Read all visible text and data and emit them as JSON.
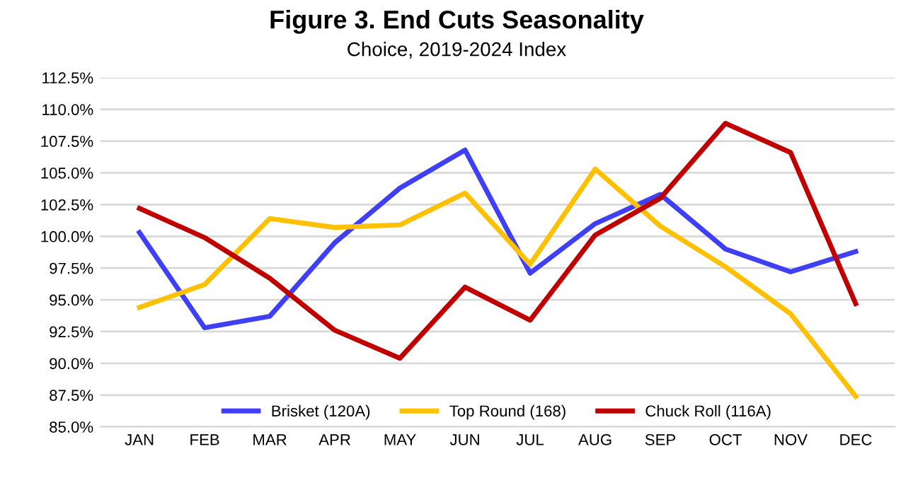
{
  "chart_data": {
    "type": "line",
    "title": "Figure 3. End Cuts Seasonality",
    "subtitle": "Choice, 2019-2024 Index",
    "categories": [
      "JAN",
      "FEB",
      "MAR",
      "APR",
      "MAY",
      "JUN",
      "JUL",
      "AUG",
      "SEP",
      "OCT",
      "NOV",
      "DEC"
    ],
    "series": [
      {
        "name": "Brisket (120A)",
        "color": "#3f3ff5",
        "values": [
          100.3,
          92.8,
          93.7,
          99.5,
          103.8,
          106.8,
          97.1,
          101.0,
          103.3,
          99.0,
          97.2,
          98.8
        ]
      },
      {
        "name": "Top Round (168)",
        "color": "#ffc000",
        "values": [
          94.4,
          96.2,
          101.4,
          100.7,
          100.9,
          103.4,
          97.8,
          105.3,
          100.8,
          97.6,
          93.9,
          87.4
        ]
      },
      {
        "name": "Chuck Roll (116A)",
        "color": "#c00000",
        "values": [
          102.2,
          99.9,
          96.7,
          92.6,
          90.4,
          96.0,
          93.4,
          100.1,
          103.0,
          108.9,
          106.6,
          94.7
        ]
      }
    ],
    "ylim": [
      85.0,
      112.5
    ],
    "yticks": [
      {
        "value": 85.0,
        "label": "85.0%"
      },
      {
        "value": 87.5,
        "label": "87.5%"
      },
      {
        "value": 90.0,
        "label": "90.0%"
      },
      {
        "value": 92.5,
        "label": "92.5%"
      },
      {
        "value": 95.0,
        "label": "95.0%"
      },
      {
        "value": 97.5,
        "label": "97.5%"
      },
      {
        "value": 100.0,
        "label": "100.0%"
      },
      {
        "value": 102.5,
        "label": "102.5%"
      },
      {
        "value": 105.0,
        "label": "105.0%"
      },
      {
        "value": 107.5,
        "label": "107.5%"
      },
      {
        "value": 110.0,
        "label": "110.0%"
      },
      {
        "value": 112.5,
        "label": "112.5%"
      }
    ],
    "grid": "y",
    "legend": "bottom",
    "marker": "none",
    "line_style": "solid"
  }
}
